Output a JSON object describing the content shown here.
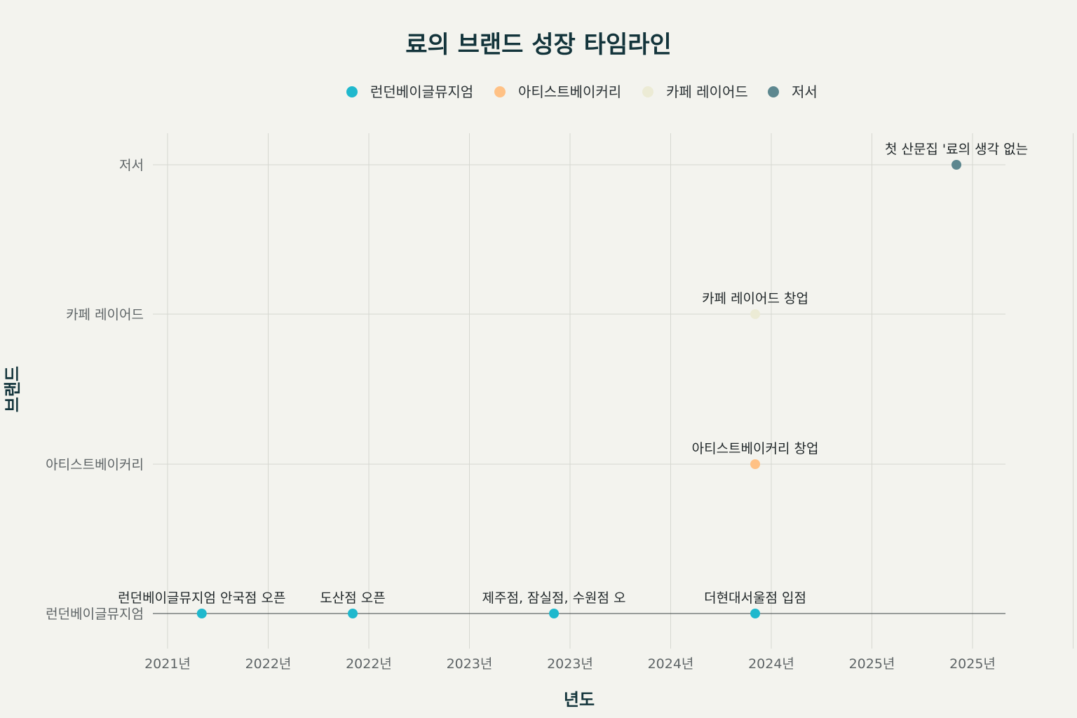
{
  "chart_data": {
    "type": "scatter",
    "title": "료의 브랜드 성장 타임라인",
    "xlabel": "년도",
    "ylabel": "브랜드",
    "categories": [
      "런던베이글뮤지엄",
      "아티스트베이커리",
      "카페 레이어드",
      "저서"
    ],
    "x_tick_values": [
      2021.0,
      2021.5,
      2022.0,
      2022.5,
      2023.0,
      2023.5,
      2024.0,
      2024.5,
      2025.0,
      2025.5
    ],
    "x_tick_labels": [
      "2021년",
      "2022년",
      "2022년",
      "2023년",
      "2023년",
      "2024년",
      "2024년",
      "2025년",
      "2025년"
    ],
    "xlim": [
      2021.0,
      2025.17
    ],
    "grid": true,
    "legend_position": "top-center",
    "series": [
      {
        "name": "런던베이글뮤지엄",
        "color": "#1fb8cd",
        "points": [
          {
            "x": 2021.17,
            "y": "런던베이글뮤지엄",
            "label": "런던베이글뮤지엄 안국점 오픈"
          },
          {
            "x": 2021.92,
            "y": "런던베이글뮤지엄",
            "label": "도산점 오픈"
          },
          {
            "x": 2022.92,
            "y": "런던베이글뮤지엄",
            "label": "제주점, 잠실점, 수원점 오"
          },
          {
            "x": 2023.92,
            "y": "런던베이글뮤지엄",
            "label": "더현대서울점 입점"
          }
        ]
      },
      {
        "name": "아티스트베이커리",
        "color": "#ffc185",
        "points": [
          {
            "x": 2023.92,
            "y": "아티스트베이커리",
            "label": "아티스트베이커리 창업"
          }
        ]
      },
      {
        "name": "카페 레이어드",
        "color": "#ecebd5",
        "points": [
          {
            "x": 2023.92,
            "y": "카페 레이어드",
            "label": "카페 레이어드 창업"
          }
        ]
      },
      {
        "name": "저서",
        "color": "#5d878f",
        "points": [
          {
            "x": 2024.92,
            "y": "저서",
            "label": "첫 산문집 '료의 생각 없는"
          }
        ]
      }
    ]
  }
}
